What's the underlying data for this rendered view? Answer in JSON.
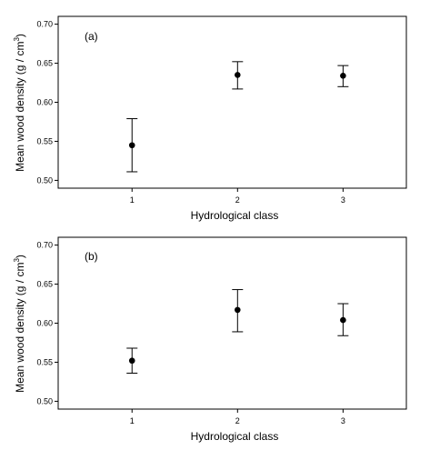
{
  "chart_data": [
    {
      "type": "scatter",
      "panel_label": "(a)",
      "xlabel": "Hydrological class",
      "ylabel": "Mean wood density (g / cm",
      "ylabel_sup": "3",
      "ylabel_close": ")",
      "x": [
        1,
        2,
        3
      ],
      "xticks": [
        "1",
        "2",
        "3"
      ],
      "xlim": [
        0.3,
        3.6
      ],
      "ylim": [
        0.49,
        0.71
      ],
      "yticks": [
        "0.50",
        "0.55",
        "0.60",
        "0.65",
        "0.70"
      ],
      "series": [
        {
          "values": [
            0.545,
            0.635,
            0.634
          ],
          "error_low": [
            0.511,
            0.617,
            0.62
          ],
          "error_high": [
            0.579,
            0.652,
            0.647
          ]
        }
      ],
      "grid": false
    },
    {
      "type": "scatter",
      "panel_label": "(b)",
      "xlabel": "Hydrological class",
      "ylabel": "Mean wood density (g / cm",
      "ylabel_sup": "3",
      "ylabel_close": ")",
      "x": [
        1,
        2,
        3
      ],
      "xticks": [
        "1",
        "2",
        "3"
      ],
      "xlim": [
        0.3,
        3.6
      ],
      "ylim": [
        0.49,
        0.71
      ],
      "yticks": [
        "0.50",
        "0.55",
        "0.60",
        "0.65",
        "0.70"
      ],
      "series": [
        {
          "values": [
            0.552,
            0.617,
            0.604
          ],
          "error_low": [
            0.536,
            0.589,
            0.584
          ],
          "error_high": [
            0.568,
            0.643,
            0.625
          ]
        }
      ],
      "grid": false
    }
  ]
}
